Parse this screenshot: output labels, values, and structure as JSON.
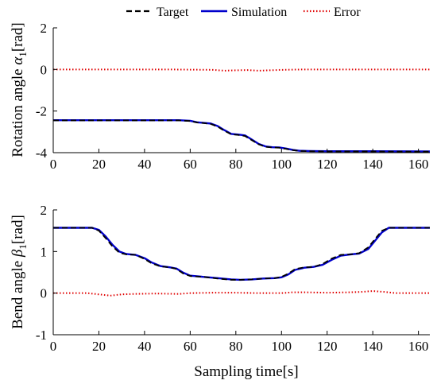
{
  "legend": {
    "items": [
      {
        "label": "Target",
        "color": "#000000",
        "style": "dashed"
      },
      {
        "label": "Simulation",
        "color": "#0000cc",
        "style": "solid"
      },
      {
        "label": "Error",
        "color": "#e00000",
        "style": "dotted"
      }
    ],
    "placement": "top-center"
  },
  "chart_data": [
    {
      "type": "line",
      "title": "",
      "xlabel": "",
      "ylabel_main": "Rotation angle ",
      "ylabel_symbol": "α",
      "ylabel_sub": "1",
      "ylabel_unit": "[rad]",
      "xlim": [
        0,
        165
      ],
      "ylim": [
        -4,
        2
      ],
      "xticks": [
        0,
        20,
        40,
        60,
        80,
        100,
        120,
        140,
        160
      ],
      "yticks": [
        -4,
        -2,
        0,
        2
      ],
      "grid": false,
      "series": [
        {
          "name": "Target",
          "color": "#000000",
          "style": "dashed",
          "x": [
            0,
            55,
            60,
            63,
            66,
            69,
            72,
            75,
            78,
            81,
            84,
            87,
            90,
            93,
            96,
            99,
            102,
            105,
            108,
            112,
            120,
            140,
            165
          ],
          "y": [
            -2.45,
            -2.45,
            -2.48,
            -2.55,
            -2.58,
            -2.62,
            -2.75,
            -2.95,
            -3.12,
            -3.15,
            -3.2,
            -3.4,
            -3.6,
            -3.72,
            -3.75,
            -3.76,
            -3.82,
            -3.88,
            -3.92,
            -3.93,
            -3.94,
            -3.94,
            -3.95
          ]
        },
        {
          "name": "Simulation",
          "color": "#0000cc",
          "style": "solid",
          "x": [
            0,
            55,
            60,
            63,
            66,
            69,
            72,
            75,
            78,
            81,
            84,
            87,
            90,
            93,
            96,
            99,
            102,
            105,
            108,
            112,
            120,
            140,
            165
          ],
          "y": [
            -2.44,
            -2.44,
            -2.47,
            -2.54,
            -2.57,
            -2.6,
            -2.72,
            -2.92,
            -3.1,
            -3.13,
            -3.17,
            -3.37,
            -3.58,
            -3.7,
            -3.74,
            -3.75,
            -3.8,
            -3.87,
            -3.91,
            -3.92,
            -3.93,
            -3.93,
            -3.94
          ]
        },
        {
          "name": "Error",
          "color": "#e00000",
          "style": "dotted",
          "x": [
            0,
            50,
            60,
            70,
            75,
            80,
            85,
            90,
            95,
            100,
            110,
            165
          ],
          "y": [
            0,
            0,
            -0.01,
            -0.02,
            -0.06,
            -0.04,
            -0.03,
            -0.06,
            -0.04,
            -0.02,
            0,
            0
          ]
        }
      ]
    },
    {
      "type": "line",
      "title": "",
      "xlabel": "Sampling time[s]",
      "ylabel_main": "Bend angle ",
      "ylabel_symbol": "β",
      "ylabel_sub": "1",
      "ylabel_unit": "[rad]",
      "xlim": [
        0,
        165
      ],
      "ylim": [
        -1,
        2
      ],
      "xticks": [
        0,
        20,
        40,
        60,
        80,
        100,
        120,
        140,
        160
      ],
      "yticks": [
        -1,
        0,
        1,
        2
      ],
      "grid": false,
      "series": [
        {
          "name": "Target",
          "color": "#000000",
          "style": "dashed",
          "x": [
            0,
            17,
            20,
            23,
            26,
            29,
            32,
            36,
            40,
            43,
            47,
            51,
            54,
            57,
            60,
            66,
            72,
            78,
            82,
            87,
            92,
            97,
            100,
            103,
            106,
            110,
            114,
            118,
            122,
            126,
            130,
            134,
            138,
            141,
            144,
            147,
            165
          ],
          "y": [
            1.57,
            1.57,
            1.5,
            1.32,
            1.12,
            0.97,
            0.93,
            0.92,
            0.82,
            0.72,
            0.64,
            0.62,
            0.58,
            0.47,
            0.41,
            0.39,
            0.35,
            0.32,
            0.32,
            0.33,
            0.35,
            0.36,
            0.39,
            0.47,
            0.58,
            0.62,
            0.63,
            0.7,
            0.83,
            0.92,
            0.93,
            0.96,
            1.1,
            1.3,
            1.5,
            1.57,
            1.57
          ]
        },
        {
          "name": "Simulation",
          "color": "#0000cc",
          "style": "solid",
          "x": [
            0,
            17,
            20,
            23,
            26,
            29,
            32,
            36,
            40,
            43,
            47,
            51,
            54,
            57,
            60,
            66,
            72,
            78,
            82,
            87,
            92,
            97,
            100,
            103,
            106,
            110,
            114,
            118,
            122,
            126,
            130,
            134,
            138,
            141,
            144,
            147,
            165
          ],
          "y": [
            1.57,
            1.57,
            1.52,
            1.36,
            1.16,
            1.0,
            0.94,
            0.92,
            0.84,
            0.74,
            0.65,
            0.62,
            0.59,
            0.49,
            0.42,
            0.39,
            0.36,
            0.33,
            0.32,
            0.33,
            0.35,
            0.36,
            0.38,
            0.45,
            0.56,
            0.61,
            0.63,
            0.68,
            0.8,
            0.9,
            0.93,
            0.95,
            1.06,
            1.26,
            1.46,
            1.57,
            1.57
          ]
        },
        {
          "name": "Error",
          "color": "#e00000",
          "style": "dotted",
          "x": [
            0,
            15,
            20,
            25,
            30,
            35,
            45,
            55,
            60,
            70,
            80,
            90,
            100,
            105,
            110,
            120,
            130,
            135,
            140,
            145,
            150,
            165
          ],
          "y": [
            0,
            0,
            -0.03,
            -0.06,
            -0.03,
            -0.02,
            -0.01,
            -0.02,
            0,
            0.01,
            0.01,
            0,
            0,
            0.02,
            0.02,
            0.01,
            0.02,
            0.03,
            0.05,
            0.03,
            0,
            0
          ]
        }
      ]
    }
  ]
}
